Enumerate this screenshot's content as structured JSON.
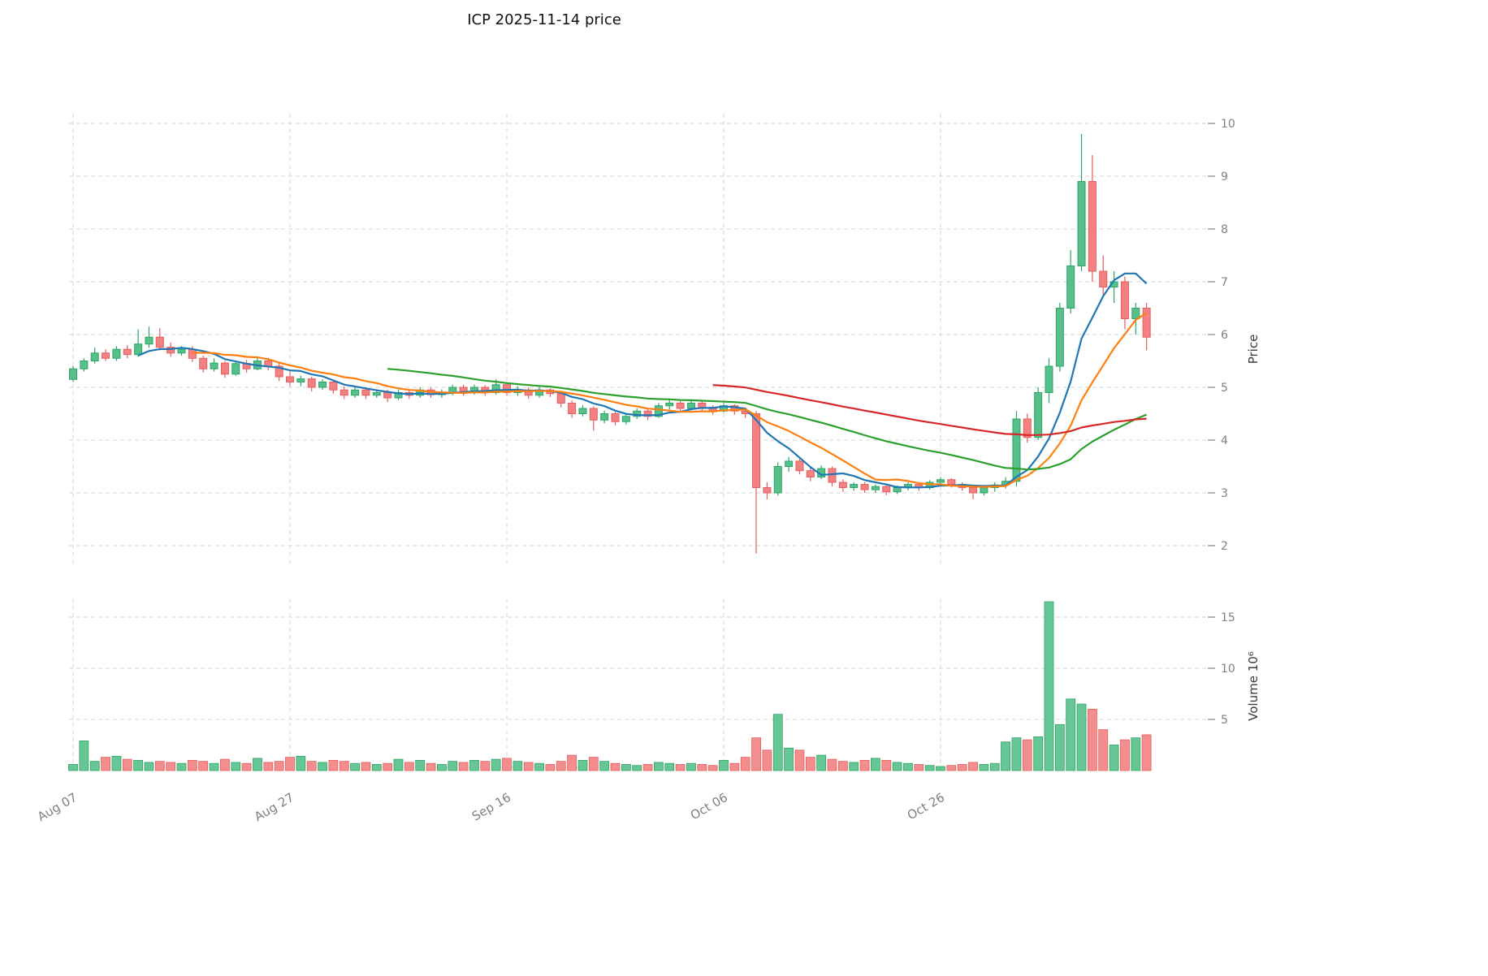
{
  "chart_data": {
    "type": "candlestick",
    "title": "ICP  2025-11-14  price",
    "ylabel_price": "Price",
    "ylabel_volume": "Volume  10⁶",
    "price_axis_ticks": [
      2,
      3,
      4,
      5,
      6,
      7,
      8,
      9,
      10
    ],
    "volume_axis_ticks": [
      5,
      10,
      15
    ],
    "ylim_price": [
      1.6,
      10.2
    ],
    "ylim_volume": [
      0,
      17.5
    ],
    "x_ticks": [
      {
        "index": 0,
        "label": "Aug 07"
      },
      {
        "index": 20,
        "label": "Aug 27"
      },
      {
        "index": 40,
        "label": "Sep 16"
      },
      {
        "index": 60,
        "label": "Oct 06"
      },
      {
        "index": 80,
        "label": "Oct 26"
      }
    ],
    "colors": {
      "up": "#57c08a",
      "up_border": "#2fa566",
      "down": "#f38181",
      "down_border": "#e55f5f",
      "ma_blue": "#1f77b4",
      "ma_orange": "#ff7f0e",
      "ma_green": "#2ca02c",
      "ma_red": "#d62728",
      "grid": "#d4d4d4",
      "axis_text": "#808080",
      "label_text": "#3b3b3b",
      "title_text": "#111111"
    },
    "moving_averages": [
      {
        "name": "sma-7",
        "window": 7,
        "color_key": "ma_blue"
      },
      {
        "name": "sma-12",
        "window": 12,
        "color_key": "ma_orange"
      },
      {
        "name": "sma-30",
        "window": 30,
        "color_key": "ma_green"
      },
      {
        "name": "sma-60",
        "window": 60,
        "color_key": "ma_red"
      }
    ],
    "candles_ohlc": [
      [
        5.15,
        5.4,
        5.1,
        5.35
      ],
      [
        5.35,
        5.55,
        5.3,
        5.5
      ],
      [
        5.5,
        5.75,
        5.45,
        5.65
      ],
      [
        5.65,
        5.72,
        5.5,
        5.55
      ],
      [
        5.55,
        5.78,
        5.5,
        5.72
      ],
      [
        5.72,
        5.8,
        5.55,
        5.62
      ],
      [
        5.62,
        6.1,
        5.58,
        5.82
      ],
      [
        5.82,
        6.15,
        5.75,
        5.95
      ],
      [
        5.95,
        6.12,
        5.7,
        5.76
      ],
      [
        5.76,
        5.85,
        5.58,
        5.65
      ],
      [
        5.65,
        5.78,
        5.6,
        5.72
      ],
      [
        5.72,
        5.78,
        5.48,
        5.55
      ],
      [
        5.55,
        5.6,
        5.28,
        5.35
      ],
      [
        5.35,
        5.55,
        5.3,
        5.46
      ],
      [
        5.46,
        5.5,
        5.18,
        5.25
      ],
      [
        5.25,
        5.5,
        5.22,
        5.45
      ],
      [
        5.45,
        5.52,
        5.28,
        5.35
      ],
      [
        5.35,
        5.58,
        5.32,
        5.5
      ],
      [
        5.5,
        5.56,
        5.32,
        5.4
      ],
      [
        5.4,
        5.46,
        5.12,
        5.2
      ],
      [
        5.2,
        5.3,
        5.02,
        5.1
      ],
      [
        5.1,
        5.22,
        5.02,
        5.16
      ],
      [
        5.16,
        5.2,
        4.92,
        5.0
      ],
      [
        5.0,
        5.15,
        4.95,
        5.1
      ],
      [
        5.1,
        5.14,
        4.88,
        4.95
      ],
      [
        4.95,
        5.02,
        4.78,
        4.85
      ],
      [
        4.85,
        5.0,
        4.8,
        4.95
      ],
      [
        4.95,
        5.0,
        4.78,
        4.85
      ],
      [
        4.85,
        4.96,
        4.8,
        4.9
      ],
      [
        4.9,
        4.95,
        4.72,
        4.8
      ],
      [
        4.8,
        4.95,
        4.76,
        4.9
      ],
      [
        4.9,
        4.95,
        4.78,
        4.85
      ],
      [
        4.85,
        5.0,
        4.8,
        4.95
      ],
      [
        4.95,
        5.0,
        4.8,
        4.86
      ],
      [
        4.86,
        4.96,
        4.8,
        4.9
      ],
      [
        4.9,
        5.05,
        4.85,
        5.0
      ],
      [
        5.0,
        5.05,
        4.84,
        4.9
      ],
      [
        4.9,
        5.05,
        4.86,
        5.0
      ],
      [
        5.0,
        5.04,
        4.84,
        4.9
      ],
      [
        4.9,
        5.15,
        4.86,
        5.05
      ],
      [
        5.05,
        5.1,
        4.84,
        4.9
      ],
      [
        4.9,
        5.02,
        4.84,
        4.95
      ],
      [
        4.95,
        5.0,
        4.78,
        4.85
      ],
      [
        4.85,
        5.0,
        4.8,
        4.95
      ],
      [
        4.95,
        4.98,
        4.82,
        4.88
      ],
      [
        4.88,
        4.92,
        4.62,
        4.7
      ],
      [
        4.7,
        4.75,
        4.42,
        4.5
      ],
      [
        4.5,
        4.66,
        4.45,
        4.6
      ],
      [
        4.6,
        4.64,
        4.18,
        4.38
      ],
      [
        4.38,
        4.56,
        4.32,
        4.5
      ],
      [
        4.5,
        4.54,
        4.28,
        4.35
      ],
      [
        4.35,
        4.5,
        4.3,
        4.45
      ],
      [
        4.45,
        4.6,
        4.4,
        4.55
      ],
      [
        4.55,
        4.58,
        4.38,
        4.45
      ],
      [
        4.45,
        4.7,
        4.42,
        4.65
      ],
      [
        4.65,
        4.76,
        4.58,
        4.7
      ],
      [
        4.7,
        4.74,
        4.54,
        4.6
      ],
      [
        4.6,
        4.74,
        4.56,
        4.7
      ],
      [
        4.7,
        4.73,
        4.55,
        4.62
      ],
      [
        4.62,
        4.66,
        4.48,
        4.55
      ],
      [
        4.55,
        4.7,
        4.52,
        4.65
      ],
      [
        4.65,
        4.68,
        4.48,
        4.55
      ],
      [
        4.55,
        4.62,
        4.42,
        4.5
      ],
      [
        4.5,
        4.55,
        1.85,
        3.1
      ],
      [
        3.1,
        3.2,
        2.88,
        3.0
      ],
      [
        3.0,
        3.58,
        2.95,
        3.5
      ],
      [
        3.5,
        3.68,
        3.4,
        3.6
      ],
      [
        3.6,
        3.65,
        3.35,
        3.42
      ],
      [
        3.42,
        3.5,
        3.22,
        3.3
      ],
      [
        3.3,
        3.52,
        3.26,
        3.46
      ],
      [
        3.46,
        3.5,
        3.12,
        3.2
      ],
      [
        3.2,
        3.26,
        3.02,
        3.1
      ],
      [
        3.1,
        3.2,
        3.04,
        3.16
      ],
      [
        3.16,
        3.2,
        3.0,
        3.06
      ],
      [
        3.06,
        3.16,
        3.0,
        3.12
      ],
      [
        3.12,
        3.15,
        2.96,
        3.02
      ],
      [
        3.02,
        3.14,
        2.98,
        3.1
      ],
      [
        3.1,
        3.2,
        3.05,
        3.16
      ],
      [
        3.16,
        3.2,
        3.04,
        3.1
      ],
      [
        3.1,
        3.24,
        3.06,
        3.2
      ],
      [
        3.2,
        3.3,
        3.14,
        3.25
      ],
      [
        3.25,
        3.28,
        3.1,
        3.16
      ],
      [
        3.16,
        3.2,
        3.04,
        3.1
      ],
      [
        3.1,
        3.14,
        2.88,
        3.0
      ],
      [
        3.0,
        3.15,
        2.95,
        3.1
      ],
      [
        3.1,
        3.2,
        3.02,
        3.15
      ],
      [
        3.15,
        3.3,
        3.08,
        3.22
      ],
      [
        3.22,
        4.55,
        3.12,
        4.4
      ],
      [
        4.4,
        4.5,
        3.95,
        4.05
      ],
      [
        4.05,
        5.0,
        4.0,
        4.9
      ],
      [
        4.9,
        5.55,
        4.7,
        5.4
      ],
      [
        5.4,
        6.6,
        5.3,
        6.5
      ],
      [
        6.5,
        7.6,
        6.4,
        7.3
      ],
      [
        7.3,
        9.8,
        7.2,
        8.9
      ],
      [
        8.9,
        9.4,
        7.0,
        7.2
      ],
      [
        7.2,
        7.5,
        6.7,
        6.9
      ],
      [
        6.9,
        7.2,
        6.6,
        7.0
      ],
      [
        7.0,
        7.1,
        6.1,
        6.3
      ],
      [
        6.3,
        6.6,
        6.0,
        6.5
      ],
      [
        6.5,
        6.6,
        5.7,
        5.95
      ]
    ],
    "volumes_millions": [
      0.6,
      2.9,
      0.9,
      1.3,
      1.4,
      1.1,
      1.0,
      0.8,
      0.9,
      0.8,
      0.7,
      1.0,
      0.9,
      0.7,
      1.1,
      0.8,
      0.7,
      1.2,
      0.8,
      0.9,
      1.3,
      1.4,
      0.9,
      0.8,
      1.0,
      0.9,
      0.7,
      0.8,
      0.6,
      0.7,
      1.1,
      0.8,
      1.0,
      0.7,
      0.6,
      0.9,
      0.8,
      1.0,
      0.9,
      1.1,
      1.2,
      0.9,
      0.8,
      0.7,
      0.6,
      0.9,
      1.5,
      1.0,
      1.3,
      0.9,
      0.7,
      0.6,
      0.5,
      0.6,
      0.8,
      0.7,
      0.6,
      0.7,
      0.6,
      0.5,
      1.0,
      0.7,
      1.3,
      3.2,
      2.0,
      5.5,
      2.2,
      2.0,
      1.3,
      1.5,
      1.1,
      0.9,
      0.8,
      1.0,
      1.2,
      1.0,
      0.8,
      0.7,
      0.6,
      0.5,
      0.4,
      0.5,
      0.6,
      0.8,
      0.6,
      0.7,
      2.8,
      3.2,
      3.0,
      3.3,
      16.5,
      4.5,
      7.0,
      6.5,
      6.0,
      4.0,
      2.5,
      3.0,
      3.2,
      3.5
    ]
  }
}
